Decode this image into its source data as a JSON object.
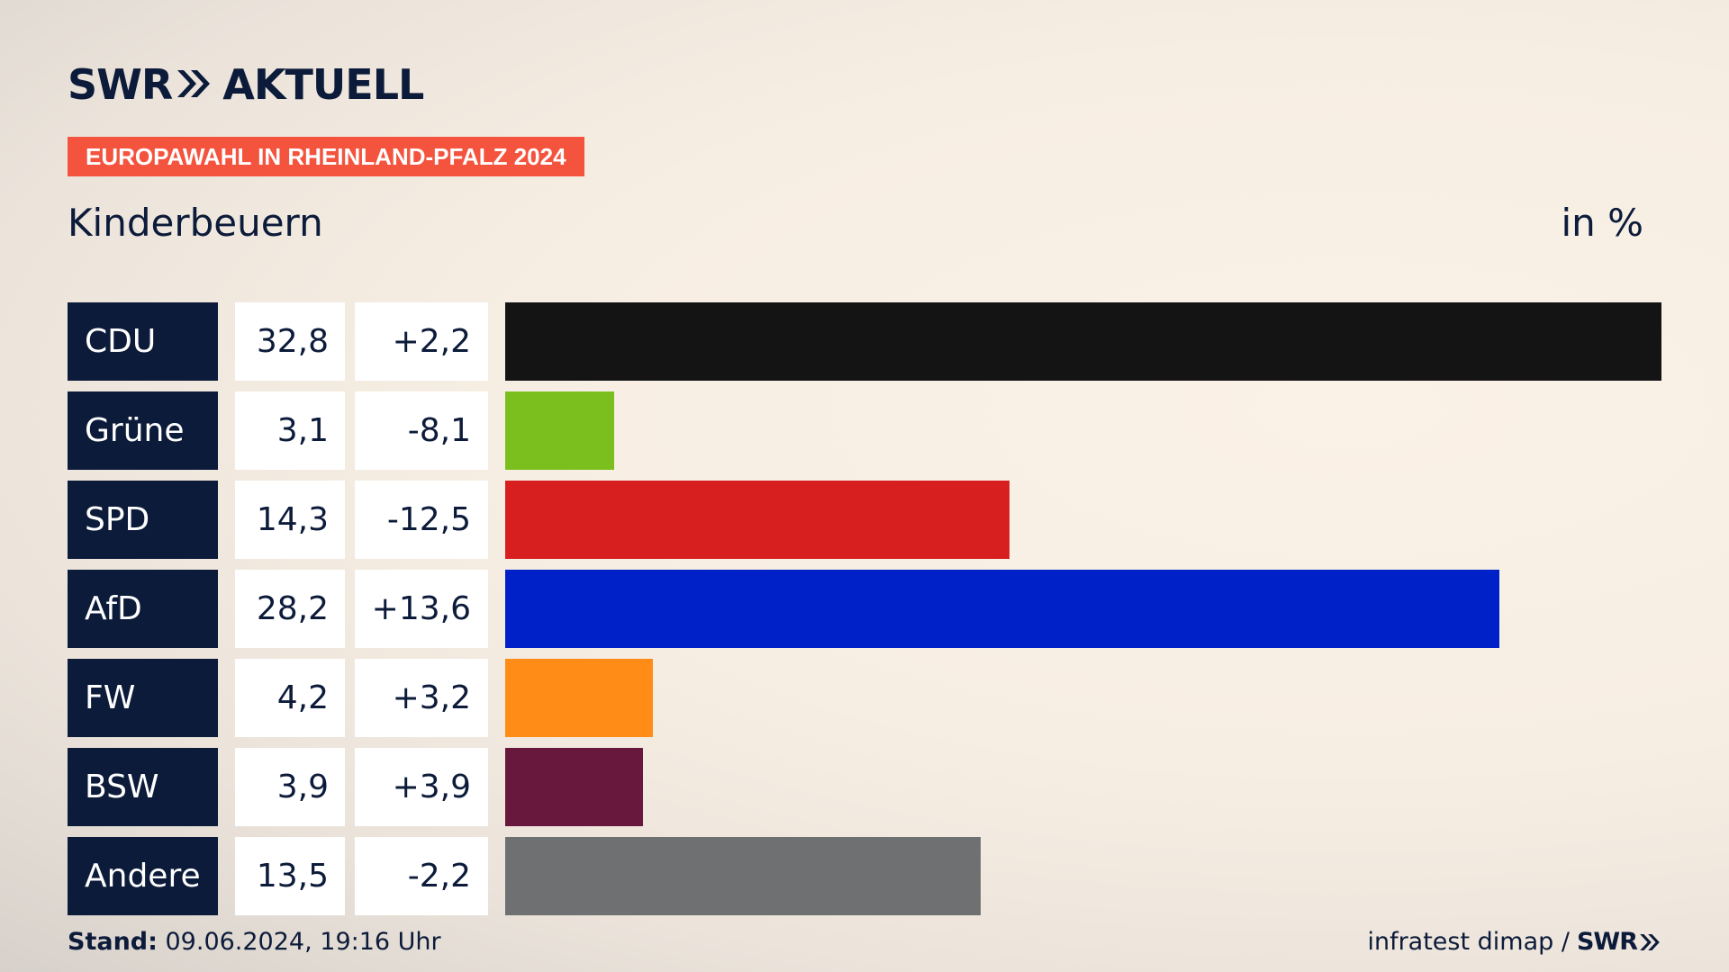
{
  "header": {
    "brand_swr": "SWR",
    "brand_aktuell": "AKTUELL",
    "badge": "EUROPAWAHL IN RHEINLAND-PFALZ 2024",
    "place": "Kinderbeuern",
    "unit": "in %"
  },
  "chart_data": {
    "type": "bar",
    "orientation": "horizontal",
    "categories": [
      "CDU",
      "Grüne",
      "SPD",
      "AfD",
      "FW",
      "BSW",
      "Andere"
    ],
    "values": [
      32.8,
      3.1,
      14.3,
      28.2,
      4.2,
      3.9,
      13.5
    ],
    "value_labels": [
      "32,8",
      "3,1",
      "14,3",
      "28,2",
      "4,2",
      "3,9",
      "13,5"
    ],
    "diff_labels": [
      "+2,2",
      "-8,1",
      "-12,5",
      "+13,6",
      "+3,2",
      "+3,9",
      "-2,2"
    ],
    "colors": [
      "#141414",
      "#7bbf1e",
      "#d71f1f",
      "#0021c8",
      "#ff8c17",
      "#69183d",
      "#6f7072"
    ],
    "xlim": [
      0,
      32.8
    ]
  },
  "footer": {
    "stand_label": "Stand:",
    "stand_value": " 09.06.2024, 19:16 Uhr",
    "source": "infratest dimap / ",
    "source_brand": "SWR"
  }
}
